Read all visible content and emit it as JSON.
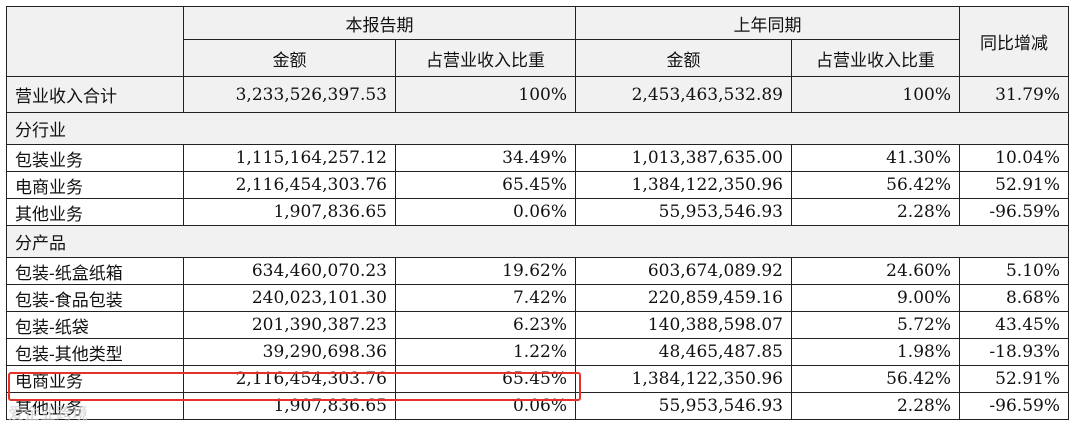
{
  "headers": {
    "current_period": "本报告期",
    "prior_period": "上年同期",
    "yoy": "同比增减",
    "amount": "金额",
    "ratio": "占营业收入比重"
  },
  "total": {
    "label": "营业收入合计",
    "cur_amount": "3,233,526,397.53",
    "cur_ratio": "100%",
    "prev_amount": "2,453,463,532.89",
    "prev_ratio": "100%",
    "yoy": "31.79%"
  },
  "sections": {
    "industry": "分行业",
    "product": "分产品"
  },
  "industry_rows": [
    {
      "label": "包装业务",
      "cur_amount": "1,115,164,257.12",
      "cur_ratio": "34.49%",
      "prev_amount": "1,013,387,635.00",
      "prev_ratio": "41.30%",
      "yoy": "10.04%"
    },
    {
      "label": "电商业务",
      "cur_amount": "2,116,454,303.76",
      "cur_ratio": "65.45%",
      "prev_amount": "1,384,122,350.96",
      "prev_ratio": "56.42%",
      "yoy": "52.91%"
    },
    {
      "label": "其他业务",
      "cur_amount": "1,907,836.65",
      "cur_ratio": "0.06%",
      "prev_amount": "55,953,546.93",
      "prev_ratio": "2.28%",
      "yoy": "-96.59%"
    }
  ],
  "product_rows": [
    {
      "label": "包装-纸盒纸箱",
      "cur_amount": "634,460,070.23",
      "cur_ratio": "19.62%",
      "prev_amount": "603,674,089.92",
      "prev_ratio": "24.60%",
      "yoy": "5.10%"
    },
    {
      "label": "包装-食品包装",
      "cur_amount": "240,023,101.30",
      "cur_ratio": "7.42%",
      "prev_amount": "220,859,459.16",
      "prev_ratio": "9.00%",
      "yoy": "8.68%"
    },
    {
      "label": "包装-纸袋",
      "cur_amount": "201,390,387.23",
      "cur_ratio": "6.23%",
      "prev_amount": "140,388,598.07",
      "prev_ratio": "5.72%",
      "yoy": "43.45%"
    },
    {
      "label": "包装-其他类型",
      "cur_amount": "39,290,698.36",
      "cur_ratio": "1.22%",
      "prev_amount": "48,465,487.85",
      "prev_ratio": "1.98%",
      "yoy": "-18.93%"
    },
    {
      "label": "电商业务",
      "cur_amount": "2,116,454,303.76",
      "cur_ratio": "65.45%",
      "prev_amount": "1,384,122,350.96",
      "prev_ratio": "56.42%",
      "yoy": "52.91%"
    },
    {
      "label": "其他业务",
      "cur_amount": "1,907,836.65",
      "cur_ratio": "0.06%",
      "prev_amount": "55,953,546.93",
      "prev_ratio": "2.28%",
      "yoy": "-96.59%"
    }
  ],
  "watermark": "爱企业跨境",
  "highlight_color": "#e8302a"
}
